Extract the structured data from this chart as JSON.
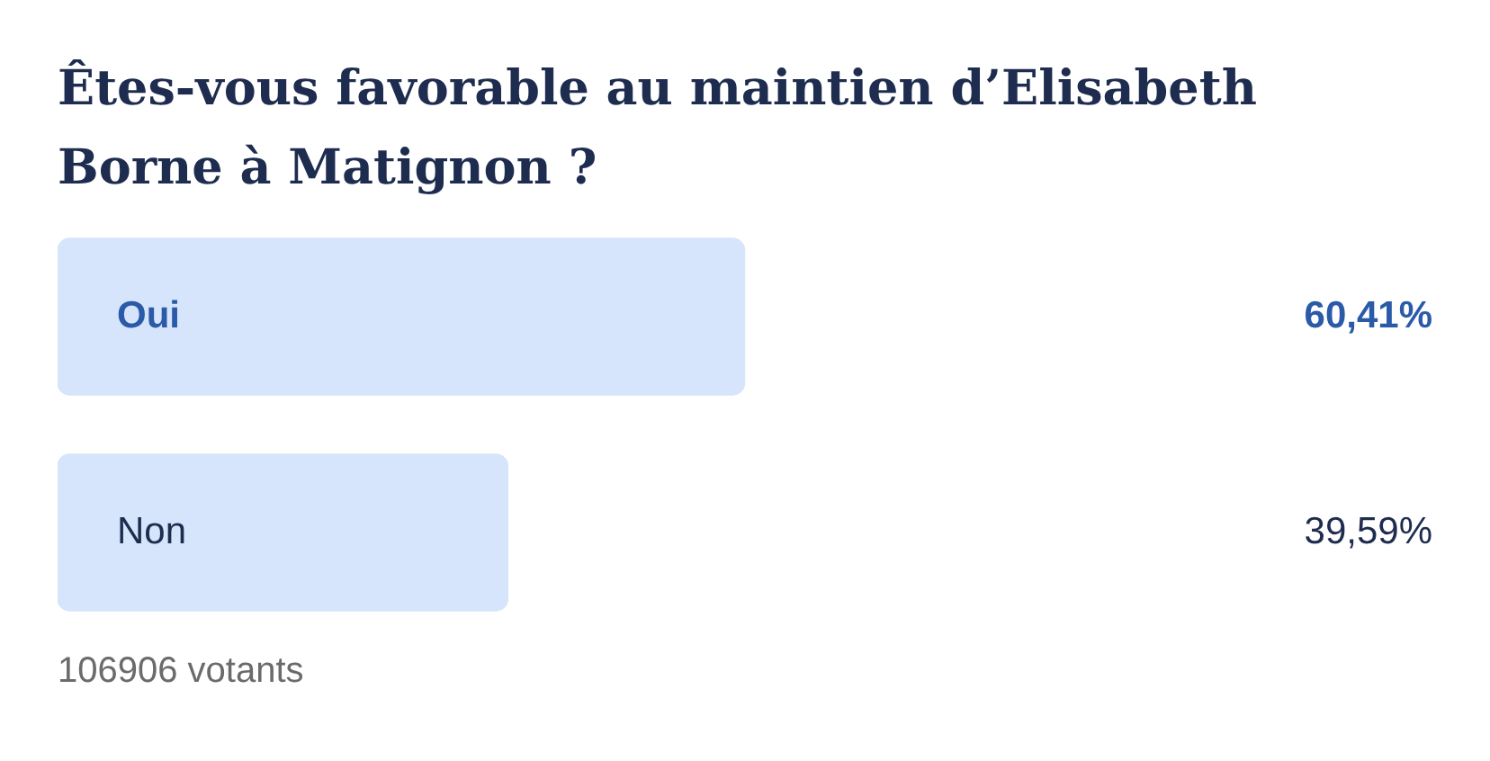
{
  "chart_data": {
    "type": "bar",
    "orientation": "horizontal",
    "title": "Êtes-vous favorable au maintien d’Elisabeth Borne à Matignon ?",
    "categories": [
      "Oui",
      "Non"
    ],
    "values": [
      60.41,
      39.59
    ],
    "value_labels": [
      "60,41%",
      "39,59%"
    ],
    "colors": [
      "#d6e5fb",
      "#d6e5fb"
    ],
    "legend": false,
    "annotations": [
      "106906 votants"
    ]
  }
}
